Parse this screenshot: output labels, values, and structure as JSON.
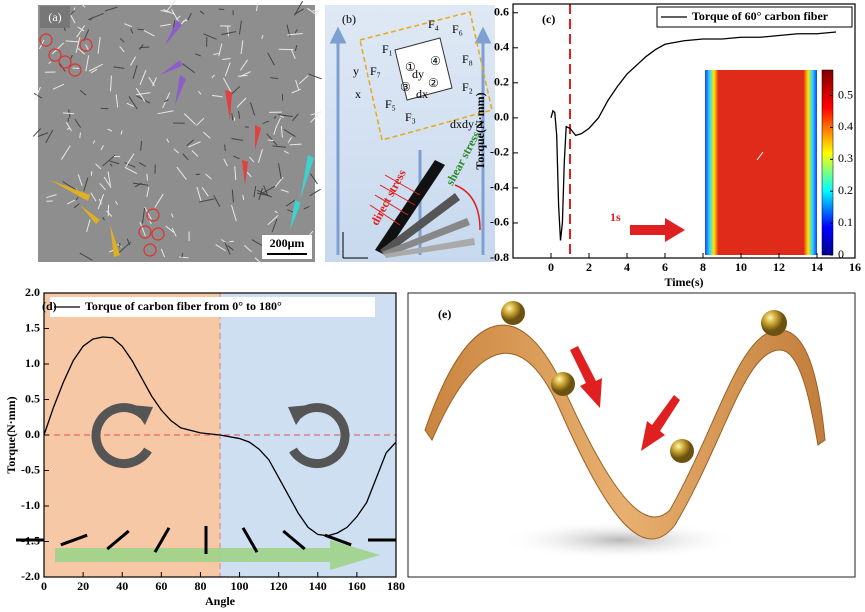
{
  "panels": {
    "a": {
      "label": "(a)",
      "scale": "200μm"
    },
    "b": {
      "label": "(b)",
      "forces": [
        "F₁",
        "F₂",
        "F₃",
        "F₄",
        "F₅",
        "F₆",
        "F₇",
        "F₈"
      ],
      "nodes": [
        "①",
        "②",
        "③",
        "④"
      ],
      "dy": "dy",
      "dx": "dx",
      "volume": "dxdy·1",
      "direct": "direct stress",
      "shear": "shear stress",
      "x": "x",
      "y": "y"
    },
    "e": {
      "label": "(e)"
    }
  },
  "chart_data": [
    {
      "type": "line",
      "panel_label": "(c)",
      "xlabel": "Time(s)",
      "ylabel": "Torque(N·mm)",
      "x": [
        0,
        0.1,
        0.2,
        0.3,
        0.4,
        0.5,
        0.6,
        0.7,
        0.8,
        1.0,
        1.3,
        1.6,
        2,
        2.5,
        3,
        3.5,
        4,
        4.5,
        5,
        5.5,
        6,
        7,
        8,
        9,
        10,
        11,
        12,
        13,
        14,
        15
      ],
      "series": [
        {
          "name": "Torque of 60° carbon fiber",
          "color": "#000000",
          "values": [
            0,
            0.04,
            0.03,
            -0.1,
            -0.5,
            -0.7,
            -0.6,
            -0.25,
            -0.05,
            -0.06,
            -0.1,
            -0.09,
            -0.06,
            0.0,
            0.1,
            0.18,
            0.25,
            0.3,
            0.35,
            0.39,
            0.42,
            0.44,
            0.45,
            0.45,
            0.46,
            0.46,
            0.47,
            0.48,
            0.48,
            0.49
          ]
        }
      ],
      "xlim": [
        -2,
        16
      ],
      "xticks": [
        0,
        2,
        4,
        6,
        8,
        10,
        12,
        14,
        16
      ],
      "ylim": [
        -0.8,
        0.65
      ],
      "yticks": [
        -0.8,
        -0.6,
        -0.4,
        -0.2,
        {
          "value": 0,
          "label": "0.0"
        },
        0.2,
        0.4,
        0.6
      ],
      "marker_x": 1,
      "annotation": "1s",
      "colorbar_lim": [
        0,
        0.58
      ],
      "colorbar_ticks": [
        0,
        0.1,
        0.2,
        0.3,
        0.4,
        0.5
      ]
    },
    {
      "type": "line",
      "panel_label": "(d)",
      "xlabel": "Angle",
      "ylabel": "Torque(N·mm)",
      "x": [
        0,
        5,
        10,
        15,
        20,
        25,
        30,
        35,
        40,
        45,
        50,
        55,
        60,
        65,
        70,
        80,
        90,
        100,
        105,
        110,
        115,
        120,
        125,
        130,
        135,
        140,
        145,
        150,
        155,
        160,
        165,
        170,
        175,
        180
      ],
      "series": [
        {
          "name": "Torque of carbon fiber from 0° to 180°",
          "color": "#000000",
          "values": [
            0,
            0.4,
            0.75,
            1.05,
            1.25,
            1.35,
            1.38,
            1.37,
            1.25,
            1.05,
            0.8,
            0.55,
            0.35,
            0.2,
            0.1,
            0.03,
            0,
            -0.05,
            -0.1,
            -0.2,
            -0.35,
            -0.6,
            -0.85,
            -1.1,
            -1.3,
            -1.4,
            -1.42,
            -1.38,
            -1.3,
            -1.15,
            -0.95,
            -0.6,
            -0.25,
            -0.1
          ]
        }
      ],
      "xlim": [
        0,
        180
      ],
      "xticks": [
        0,
        20,
        40,
        60,
        80,
        100,
        120,
        140,
        160,
        180
      ],
      "ylim": [
        -2,
        2
      ],
      "yticks": [
        {
          "value": -2,
          "label": "-2.0"
        },
        -1.5,
        {
          "value": -1,
          "label": "-1.0"
        },
        -0.5,
        {
          "value": 0,
          "label": "0.0"
        },
        0.5,
        {
          "value": 1,
          "label": "1.0"
        },
        1.5,
        {
          "value": 2,
          "label": "2.0"
        }
      ],
      "regions": [
        {
          "from": 0,
          "to": 90,
          "color": "#f6c8a6"
        },
        {
          "from": 90,
          "to": 180,
          "color": "#cddff0"
        }
      ]
    }
  ]
}
